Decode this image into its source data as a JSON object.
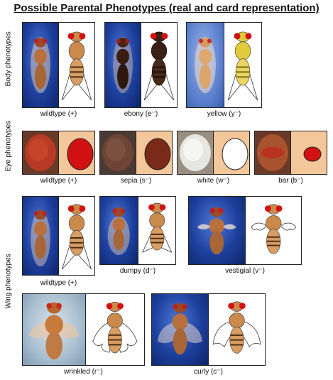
{
  "title": "Possible Parental Phenotypes (real and card representation)",
  "sections": {
    "body": "Body phenotypes",
    "eye": "Eye phenotypes",
    "wing": "Wing phenotypes"
  },
  "captions": {
    "body_wildtype": "wildtype (+)",
    "body_ebony": "ebony (e⁻)",
    "body_yellow": "yellow (y⁻)",
    "eye_wildtype": "wildtype (+)",
    "eye_sepia": "sepia (s⁻)",
    "eye_white": "white (w⁻)",
    "eye_bar": "bar (b⁻)",
    "wing_wildtype": "wildtype (+)",
    "wing_dumpy": "dumpy (d⁻)",
    "wing_vestigial": "vestigial (v⁻)",
    "wing_wrinkled": "wrinkled (r⁻)",
    "wing_curly": "curly (c⁻)"
  },
  "colors": {
    "photo_blue": "#1d3f9c",
    "eye_red": "#d21212",
    "body_tan": "#c98a4c",
    "ebony_body": "#3a1f14",
    "yellow_body": "#e0cc3a",
    "sepia_eye": "#7a2a18",
    "white_eye": "#ffffff"
  }
}
